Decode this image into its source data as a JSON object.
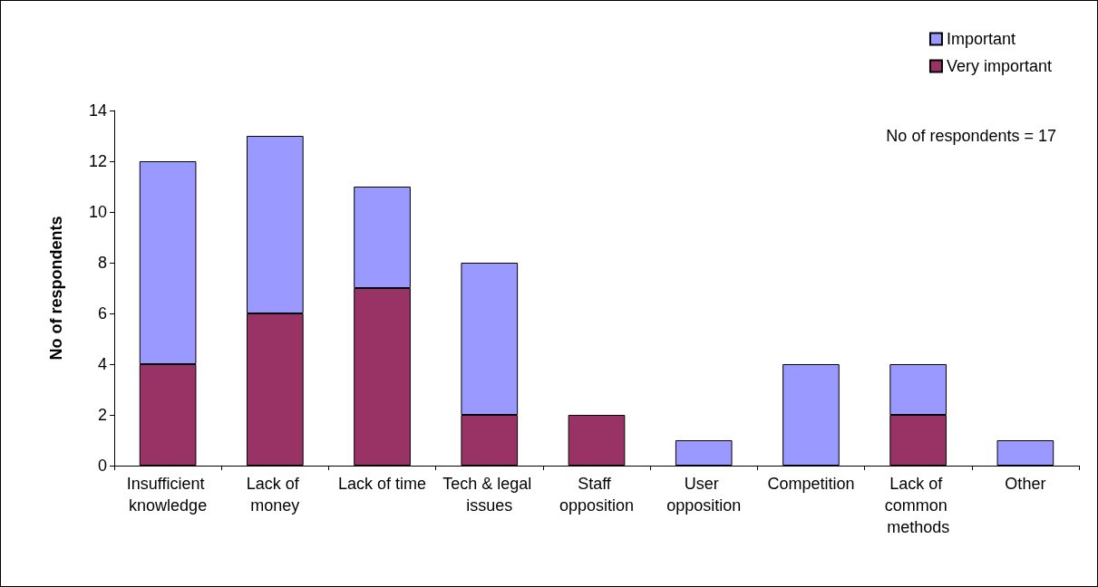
{
  "chart_data": {
    "type": "bar",
    "ylabel": "No of respondents",
    "categories": [
      "Insufficient knowledge",
      "Lack of money",
      "Lack of time",
      "Tech & legal issues",
      "Staff opposition",
      "User opposition",
      "Competition",
      "Lack of common methods",
      "Other"
    ],
    "series": [
      {
        "name": "Very important",
        "color": "#993366",
        "values": [
          4,
          6,
          7,
          2,
          2,
          0,
          0,
          2,
          0
        ]
      },
      {
        "name": "Important",
        "color": "#9999ff",
        "values": [
          8,
          7,
          4,
          6,
          0,
          1,
          4,
          2,
          1
        ]
      }
    ],
    "stacked": true,
    "ylim": [
      0,
      14
    ],
    "yticks": [
      0,
      2,
      4,
      6,
      8,
      10,
      12,
      14
    ],
    "grid": false,
    "legend": "top right",
    "annotations": [
      "No of respondents = 17"
    ]
  }
}
